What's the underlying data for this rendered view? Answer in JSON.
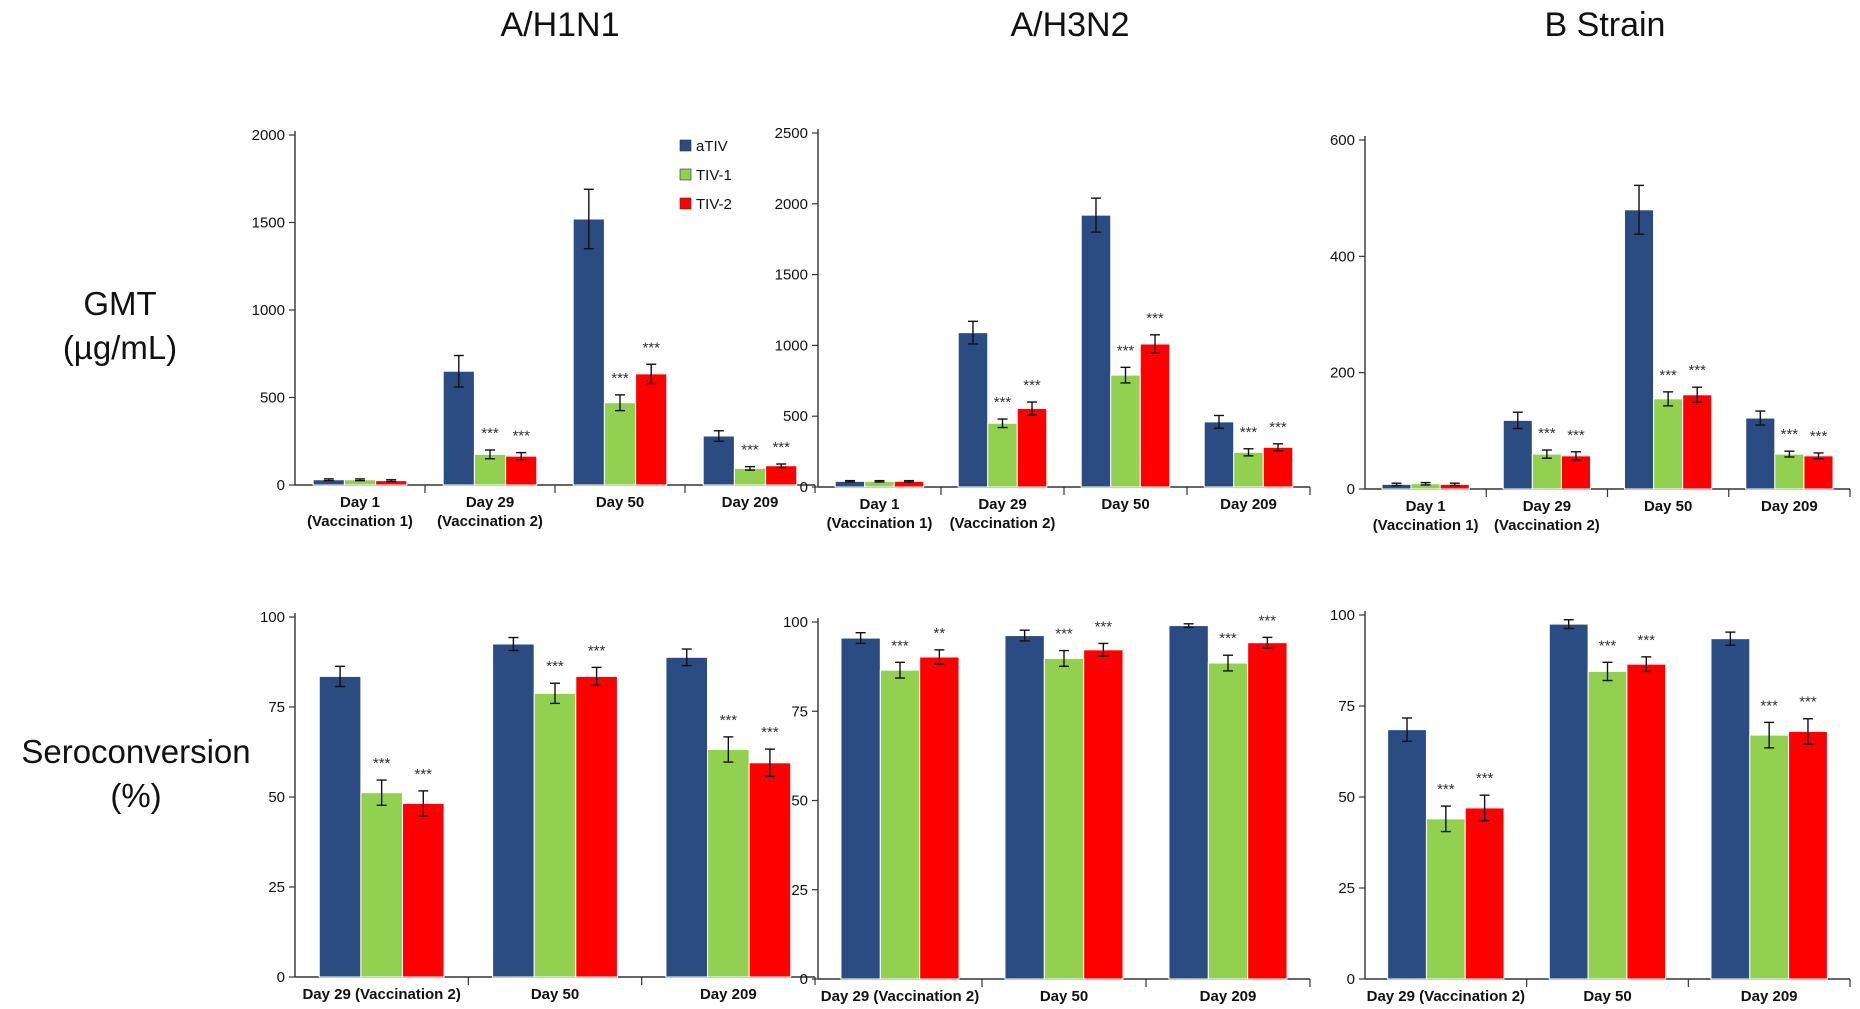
{
  "column_titles": [
    "A/H1N1",
    "A/H3N2",
    "B Strain"
  ],
  "row_labels": {
    "gmt_line1": "GMT",
    "gmt_line2": "(µg/mL)",
    "sero_line1": "Seroconversion",
    "sero_line2": "(%)"
  },
  "colors": {
    "aTIV": "#2b4c82",
    "TIV-1": "#92d050",
    "TIV-2": "#ff0000"
  },
  "chart_data": [
    {
      "type": "bar",
      "title": "A/H1N1",
      "ylabel": "GMT (µg/mL)",
      "categories": [
        [
          "Day 1",
          "(Vaccination 1)"
        ],
        [
          "Day 29",
          "(Vaccination 2)"
        ],
        [
          "Day 50"
        ],
        [
          "Day 209"
        ]
      ],
      "ylim": [
        0,
        2000
      ],
      "yticks": [
        0,
        500,
        1000,
        1500,
        2000
      ],
      "legend": true,
      "legend_position": "top",
      "series": [
        {
          "name": "aTIV",
          "values": [
            30,
            650,
            1520,
            280
          ],
          "errors": [
            5,
            90,
            170,
            30
          ],
          "sig": [
            "",
            "",
            "",
            ""
          ]
        },
        {
          "name": "TIV-1",
          "values": [
            30,
            175,
            470,
            95
          ],
          "errors": [
            5,
            25,
            45,
            10
          ],
          "sig": [
            "",
            "***",
            "***",
            "***"
          ]
        },
        {
          "name": "TIV-2",
          "values": [
            25,
            165,
            635,
            110
          ],
          "errors": [
            5,
            20,
            55,
            10
          ],
          "sig": [
            "",
            "***",
            "***",
            "***"
          ]
        }
      ]
    },
    {
      "type": "bar",
      "title": "A/H3N2",
      "ylabel": "GMT (µg/mL)",
      "categories": [
        [
          "Day 1",
          "(Vaccination 1)"
        ],
        [
          "Day 29",
          "(Vaccination 2)"
        ],
        [
          "Day 50"
        ],
        [
          "Day 209"
        ]
      ],
      "ylim": [
        0,
        2500
      ],
      "yticks": [
        0,
        500,
        1000,
        1500,
        2000,
        2500
      ],
      "legend": false,
      "series": [
        {
          "name": "aTIV",
          "values": [
            40,
            1090,
            1920,
            460
          ],
          "errors": [
            5,
            80,
            120,
            45
          ],
          "sig": [
            "",
            "",
            "",
            ""
          ]
        },
        {
          "name": "TIV-1",
          "values": [
            40,
            450,
            790,
            245
          ],
          "errors": [
            5,
            30,
            55,
            25
          ],
          "sig": [
            "",
            "***",
            "***",
            "***"
          ]
        },
        {
          "name": "TIV-2",
          "values": [
            40,
            555,
            1010,
            280
          ],
          "errors": [
            5,
            45,
            65,
            25
          ],
          "sig": [
            "",
            "***",
            "***",
            "***"
          ]
        }
      ]
    },
    {
      "type": "bar",
      "title": "B Strain",
      "ylabel": "GMT (µg/mL)",
      "categories": [
        [
          "Day 1",
          "(Vaccination 1)"
        ],
        [
          "Day 29",
          "(Vaccination 2)"
        ],
        [
          "Day 50"
        ],
        [
          "Day 209"
        ]
      ],
      "ylim": [
        0,
        600
      ],
      "yticks": [
        0,
        200,
        400,
        600
      ],
      "legend": false,
      "series": [
        {
          "name": "aTIV",
          "values": [
            8,
            118,
            480,
            122
          ],
          "errors": [
            2,
            14,
            42,
            12
          ],
          "sig": [
            "",
            "",
            "",
            ""
          ]
        },
        {
          "name": "TIV-1",
          "values": [
            9,
            60,
            155,
            60
          ],
          "errors": [
            2,
            7,
            12,
            5
          ],
          "sig": [
            "",
            "***",
            "***",
            "***"
          ]
        },
        {
          "name": "TIV-2",
          "values": [
            8,
            57,
            162,
            57
          ],
          "errors": [
            2,
            7,
            13,
            5
          ],
          "sig": [
            "",
            "***",
            "***",
            "***"
          ]
        }
      ]
    },
    {
      "type": "bar",
      "title": "A/H1N1",
      "ylabel": "Seroconversion (%)",
      "categories": [
        [
          "Day 29 (Vaccination 2)"
        ],
        [
          "Day 50"
        ],
        [
          "Day 209"
        ]
      ],
      "ylim": [
        0,
        100
      ],
      "yticks": [
        0,
        25,
        50,
        75,
        100
      ],
      "legend": false,
      "series": [
        {
          "name": "aTIV",
          "values": [
            83.5,
            92.5,
            88.8
          ],
          "errors": [
            2.8,
            1.8,
            2.3
          ],
          "sig": [
            "",
            "",
            ""
          ]
        },
        {
          "name": "TIV-1",
          "values": [
            51.2,
            78.8,
            63.2
          ],
          "errors": [
            3.5,
            2.8,
            3.5
          ],
          "sig": [
            "***",
            "***",
            "***"
          ]
        },
        {
          "name": "TIV-2",
          "values": [
            48.2,
            83.5,
            59.5
          ],
          "errors": [
            3.5,
            2.5,
            3.8
          ],
          "sig": [
            "***",
            "***",
            "***"
          ]
        }
      ]
    },
    {
      "type": "bar",
      "title": "A/H3N2",
      "ylabel": "Seroconversion (%)",
      "categories": [
        [
          "Day 29 (Vaccination 2)"
        ],
        [
          "Day 50"
        ],
        [
          "Day 209"
        ]
      ],
      "ylim": [
        0,
        100
      ],
      "yticks": [
        0,
        25,
        50,
        75,
        100
      ],
      "legend": false,
      "series": [
        {
          "name": "aTIV",
          "values": [
            95.5,
            96.2,
            99.0
          ],
          "errors": [
            1.5,
            1.5,
            0.5
          ],
          "sig": [
            "",
            "",
            ""
          ]
        },
        {
          "name": "TIV-1",
          "values": [
            86.5,
            89.8,
            88.5
          ],
          "errors": [
            2.2,
            2.2,
            2.2
          ],
          "sig": [
            "***",
            "***",
            "***"
          ]
        },
        {
          "name": "TIV-2",
          "values": [
            90.2,
            92.2,
            94.2
          ],
          "errors": [
            2.0,
            1.8,
            1.5
          ],
          "sig": [
            "**",
            "***",
            "***"
          ]
        }
      ]
    },
    {
      "type": "bar",
      "title": "B Strain",
      "ylabel": "Seroconversion (%)",
      "categories": [
        [
          "Day 29 (Vaccination 2)"
        ],
        [
          "Day 50"
        ],
        [
          "Day 209"
        ]
      ],
      "ylim": [
        0,
        100
      ],
      "yticks": [
        0,
        25,
        50,
        75,
        100
      ],
      "legend": false,
      "series": [
        {
          "name": "aTIV",
          "values": [
            68.5,
            97.5,
            93.5
          ],
          "errors": [
            3.2,
            1.2,
            1.8
          ],
          "sig": [
            "",
            "",
            ""
          ]
        },
        {
          "name": "TIV-1",
          "values": [
            44.0,
            84.5,
            67.0
          ],
          "errors": [
            3.5,
            2.5,
            3.5
          ],
          "sig": [
            "***",
            "***",
            "***"
          ]
        },
        {
          "name": "TIV-2",
          "values": [
            47.0,
            86.5,
            68.0
          ],
          "errors": [
            3.5,
            2.0,
            3.5
          ],
          "sig": [
            "***",
            "***",
            "***"
          ]
        }
      ]
    }
  ]
}
